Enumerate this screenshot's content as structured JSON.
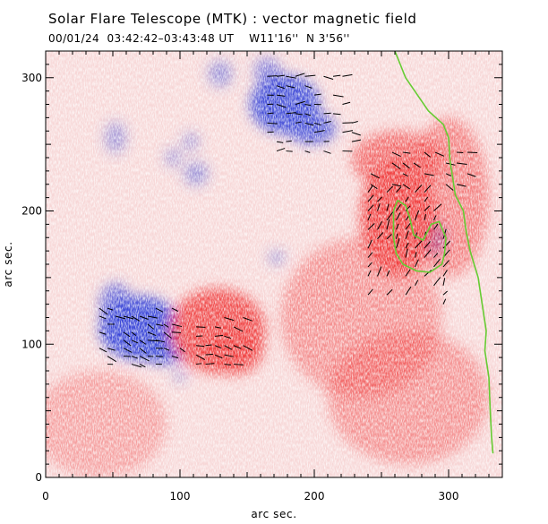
{
  "chart_data": {
    "type": "heatmap",
    "title": "Solar Flare Telescope (MTK) : vector magnetic field",
    "subtitle": "00/01/24  03:42:42–03:43:48 UT    W11'16''  N 3'56''",
    "xlabel": "arc sec.",
    "ylabel": "arc sec.",
    "xlim": [
      0,
      340
    ],
    "ylim": [
      0,
      320
    ],
    "xticks": [
      0,
      100,
      200,
      300
    ],
    "yticks": [
      0,
      100,
      200,
      300
    ],
    "colors": {
      "positive": "#f03a3a",
      "negative": "#3a46d8",
      "neutral": "#f4f0f4",
      "contour": "#66cc33",
      "vector": "#000000"
    },
    "regions": [
      {
        "polarity": "negative",
        "x": 70,
        "y": 112,
        "rx": 30,
        "ry": 24,
        "strength": 1.0
      },
      {
        "polarity": "negative",
        "x": 88,
        "y": 95,
        "rx": 18,
        "ry": 10,
        "strength": 0.9
      },
      {
        "polarity": "negative",
        "x": 52,
        "y": 130,
        "rx": 12,
        "ry": 16,
        "strength": 0.7
      },
      {
        "polarity": "negative",
        "x": 178,
        "y": 280,
        "rx": 26,
        "ry": 22,
        "strength": 0.95
      },
      {
        "polarity": "negative",
        "x": 198,
        "y": 262,
        "rx": 18,
        "ry": 12,
        "strength": 0.85
      },
      {
        "polarity": "negative",
        "x": 165,
        "y": 305,
        "rx": 10,
        "ry": 10,
        "strength": 0.6
      },
      {
        "polarity": "negative",
        "x": 130,
        "y": 303,
        "rx": 9,
        "ry": 10,
        "strength": 0.5
      },
      {
        "polarity": "negative",
        "x": 112,
        "y": 228,
        "rx": 9,
        "ry": 9,
        "strength": 0.5
      },
      {
        "polarity": "negative",
        "x": 108,
        "y": 252,
        "rx": 6,
        "ry": 7,
        "strength": 0.45
      },
      {
        "polarity": "negative",
        "x": 95,
        "y": 240,
        "rx": 6,
        "ry": 7,
        "strength": 0.45
      },
      {
        "polarity": "negative",
        "x": 52,
        "y": 255,
        "rx": 8,
        "ry": 12,
        "strength": 0.45
      },
      {
        "polarity": "negative",
        "x": 287,
        "y": 180,
        "rx": 10,
        "ry": 12,
        "strength": 1.0
      },
      {
        "polarity": "negative",
        "x": 172,
        "y": 165,
        "rx": 6,
        "ry": 5,
        "strength": 0.5
      },
      {
        "polarity": "negative",
        "x": 100,
        "y": 76,
        "rx": 5,
        "ry": 4,
        "strength": 0.5
      },
      {
        "polarity": "positive",
        "x": 128,
        "y": 110,
        "rx": 36,
        "ry": 32,
        "strength": 0.9
      },
      {
        "polarity": "positive",
        "x": 140,
        "y": 95,
        "rx": 22,
        "ry": 18,
        "strength": 0.8
      },
      {
        "polarity": "positive",
        "x": 262,
        "y": 195,
        "rx": 28,
        "ry": 44,
        "strength": 0.95
      },
      {
        "polarity": "positive",
        "x": 262,
        "y": 238,
        "rx": 34,
        "ry": 22,
        "strength": 0.7
      },
      {
        "polarity": "positive",
        "x": 300,
        "y": 210,
        "rx": 30,
        "ry": 60,
        "strength": 0.55
      },
      {
        "polarity": "positive",
        "x": 235,
        "y": 120,
        "rx": 60,
        "ry": 60,
        "strength": 0.45
      },
      {
        "polarity": "positive",
        "x": 40,
        "y": 40,
        "rx": 50,
        "ry": 40,
        "strength": 0.35
      },
      {
        "polarity": "positive",
        "x": 270,
        "y": 60,
        "rx": 60,
        "ry": 50,
        "strength": 0.45
      }
    ],
    "contours": [
      {
        "name": "limb-line",
        "points": [
          [
            260,
            320
          ],
          [
            268,
            300
          ],
          [
            285,
            275
          ],
          [
            296,
            265
          ],
          [
            300,
            255
          ],
          [
            301,
            238
          ],
          [
            303,
            225
          ],
          [
            305,
            212
          ],
          [
            311,
            200
          ],
          [
            313,
            185
          ],
          [
            316,
            170
          ],
          [
            322,
            150
          ],
          [
            325,
            130
          ],
          [
            328,
            110
          ],
          [
            327,
            95
          ],
          [
            330,
            75
          ],
          [
            331,
            50
          ],
          [
            332,
            30
          ],
          [
            333,
            18
          ]
        ]
      },
      {
        "name": "region-contour",
        "points": [
          [
            262,
            208
          ],
          [
            268,
            204
          ],
          [
            271,
            195
          ],
          [
            274,
            182
          ],
          [
            281,
            178
          ],
          [
            287,
            190
          ],
          [
            293,
            192
          ],
          [
            298,
            180
          ],
          [
            297,
            168
          ],
          [
            295,
            160
          ],
          [
            286,
            154
          ],
          [
            276,
            155
          ],
          [
            266,
            160
          ],
          [
            261,
            168
          ],
          [
            259,
            180
          ],
          [
            259,
            200
          ],
          [
            262,
            208
          ]
        ]
      }
    ],
    "vector_clusters": [
      {
        "x": [
          40,
          100
        ],
        "y": [
          85,
          130
        ],
        "step": 6,
        "angle": -20
      },
      {
        "x": [
          112,
          150
        ],
        "y": [
          85,
          120
        ],
        "step": 7,
        "angle": -10
      },
      {
        "x": [
          165,
          230
        ],
        "y": [
          245,
          305
        ],
        "step": 7,
        "angle": 0
      },
      {
        "x": [
          240,
          300
        ],
        "y": [
          130,
          220
        ],
        "step": 7,
        "angle": 60
      },
      {
        "x": [
          242,
          320
        ],
        "y": [
          220,
          250
        ],
        "step": 8,
        "angle": -20
      }
    ]
  }
}
